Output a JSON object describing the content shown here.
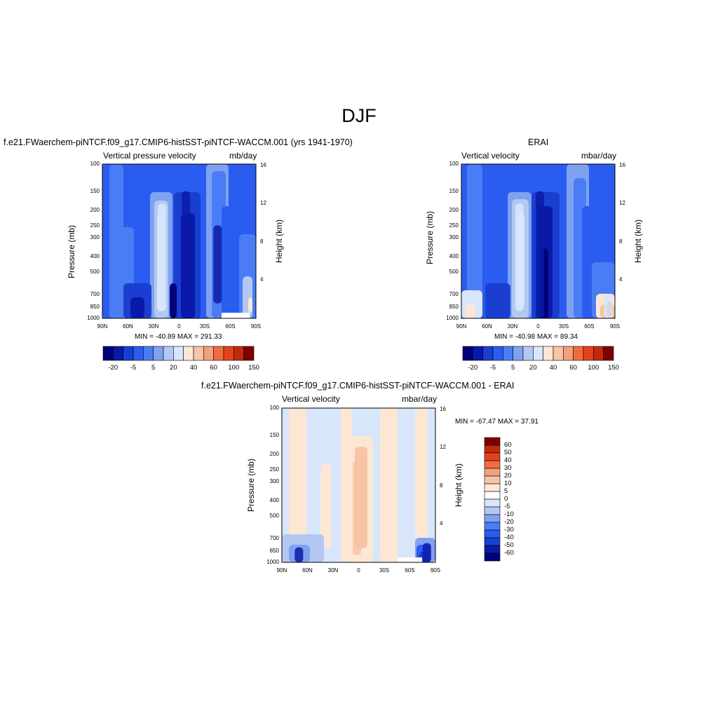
{
  "page": {
    "title": "DJF"
  },
  "colors": {
    "palette": [
      "#00007a",
      "#0a1aa8",
      "#1a3fd0",
      "#2a5cef",
      "#4a7df5",
      "#7fa2f0",
      "#b2c8f2",
      "#d7e6fb",
      "#fde7d4",
      "#f8c4a6",
      "#f4a07d",
      "#f26b40",
      "#e5421c",
      "#c22a0e",
      "#7f0000"
    ]
  },
  "panels": [
    {
      "title": "f.e21.FWaerchem-piNTCF.f09_g17.CMIP6-histSST-piNTCF-WACCM.001 (yrs 1941-1970)",
      "sub_left": "Vertical pressure velocity",
      "sub_right": "mb/day",
      "stats": "MIN = -40.89  MAX = 291.33"
    },
    {
      "title": "ERAI",
      "sub_left": "Vertical velocity",
      "sub_right": "mbar/day",
      "stats": "MIN = -40.98  MAX =  89.34"
    },
    {
      "title": "f.e21.FWaerchem-piNTCF.f09_g17.CMIP6-histSST-piNTCF-WACCM.001 - ERAI",
      "sub_left": "Vertical velocity",
      "sub_right": "mbar/day",
      "stats": "MIN = -67.47  MAX =  37.91"
    }
  ],
  "axes": {
    "x_ticks": [
      "90N",
      "60N",
      "30N",
      "0",
      "30S",
      "60S",
      "90S"
    ],
    "y_ticks": [
      "100",
      "150",
      "200",
      "250",
      "300",
      "400",
      "500",
      "700",
      "850",
      "1000"
    ],
    "y2_ticks": [
      "16",
      "12",
      "8",
      "4"
    ],
    "ylabel": "Pressure (mb)",
    "y2label": "Height (km)"
  },
  "colorbars": {
    "top_labels": [
      "-20",
      "-5",
      "5",
      "20",
      "40",
      "60",
      "100",
      "150"
    ],
    "diff_labels": [
      "60",
      "50",
      "40",
      "30",
      "20",
      "10",
      "5",
      "0",
      "-5",
      "-10",
      "-20",
      "-30",
      "-40",
      "-50",
      "-60"
    ]
  },
  "chart_data": [
    {
      "type": "heatmap",
      "title": "f.e21.FWaerchem-piNTCF.f09_g17.CMIP6-histSST-piNTCF-WACCM.001 (yrs 1941-1970)",
      "subtitle": "Vertical pressure velocity",
      "units": "mb/day",
      "x_ticks": [
        "90N",
        "60N",
        "30N",
        "0",
        "30S",
        "60S",
        "90S"
      ],
      "ylabel": "Pressure (mb)",
      "y2label": "Height (km)",
      "y_scale": "log",
      "ylim": [
        1000,
        100
      ],
      "min": -40.89,
      "max": 291.33,
      "colorbar_levels": [
        "-20",
        "-5",
        "5",
        "20",
        "40",
        "60",
        "100",
        "150"
      ],
      "features": [
        {
          "lat": 20,
          "p_top": 180,
          "p_bottom": 900,
          "sign": "positive",
          "value": 10
        },
        {
          "lat": -8,
          "p_top": 150,
          "p_bottom": 1000,
          "sign": "negative",
          "value": -30
        },
        {
          "lat": -45,
          "p_top": 250,
          "p_bottom": 800,
          "sign": "negative",
          "value": -15
        }
      ]
    },
    {
      "type": "heatmap",
      "title": "ERAI",
      "subtitle": "Vertical velocity",
      "units": "mbar/day",
      "x_ticks": [
        "90N",
        "60N",
        "30N",
        "0",
        "30S",
        "60S",
        "90S"
      ],
      "ylabel": "Pressure (mb)",
      "y2label": "Height (km)",
      "y_scale": "log",
      "ylim": [
        1000,
        100
      ],
      "min": -40.98,
      "max": 89.34,
      "colorbar_levels": [
        "-20",
        "-5",
        "5",
        "20",
        "40",
        "60",
        "100",
        "150"
      ],
      "features": [
        {
          "lat": 22,
          "p_top": 180,
          "p_bottom": 900,
          "sign": "positive",
          "value": 8
        },
        {
          "lat": -2,
          "p_top": 150,
          "p_bottom": 1000,
          "sign": "negative",
          "value": -25
        },
        {
          "lat": -82,
          "p_top": 700,
          "p_bottom": 1000,
          "sign": "positive",
          "value": 40
        }
      ]
    },
    {
      "type": "heatmap",
      "title": "f.e21.FWaerchem-piNTCF.f09_g17.CMIP6-histSST-piNTCF-WACCM.001 - ERAI",
      "subtitle": "Vertical velocity",
      "units": "mbar/day",
      "x_ticks": [
        "90N",
        "60N",
        "30N",
        "0",
        "30S",
        "60S",
        "90S"
      ],
      "ylabel": "Pressure (mb)",
      "y2label": "Height (km)",
      "y_scale": "log",
      "ylim": [
        1000,
        100
      ],
      "min": -67.47,
      "max": 37.91,
      "colorbar_levels": [
        "60",
        "50",
        "40",
        "30",
        "20",
        "10",
        "5",
        "0",
        "-5",
        "-10",
        "-20",
        "-30",
        "-40",
        "-50",
        "-60"
      ],
      "features": [
        {
          "lat": 2,
          "p_top": 220,
          "p_bottom": 900,
          "sign": "positive",
          "value": 20
        },
        {
          "lat": -80,
          "p_top": 750,
          "p_bottom": 1000,
          "sign": "negative",
          "value": -40
        },
        {
          "lat": 70,
          "p_top": 800,
          "p_bottom": 1000,
          "sign": "negative",
          "value": -10
        }
      ]
    }
  ]
}
